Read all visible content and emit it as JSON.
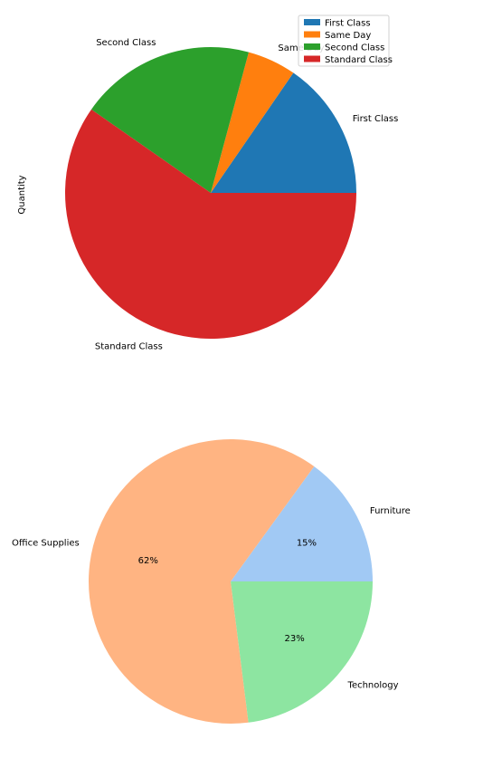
{
  "chart_data": [
    {
      "type": "pie",
      "ylabel": "Quantity",
      "categories": [
        "First Class",
        "Same Day",
        "Second Class",
        "Standard Class"
      ],
      "values": [
        15.4,
        5.4,
        19.5,
        59.7
      ],
      "colors": [
        "#1f77b4",
        "#ff7f0e",
        "#2ca02c",
        "#d62728"
      ],
      "legend": {
        "placement": "top-right",
        "entries": [
          "First Class",
          "Same Day",
          "Second Class",
          "Standard Class"
        ]
      }
    },
    {
      "type": "pie",
      "categories": [
        "Furniture",
        "Office Supplies",
        "Technology"
      ],
      "values": [
        15,
        62,
        23
      ],
      "pct_labels": [
        "15%",
        "62%",
        "23%"
      ],
      "colors": [
        "#a1c9f4",
        "#ffb482",
        "#8de5a1"
      ]
    }
  ]
}
